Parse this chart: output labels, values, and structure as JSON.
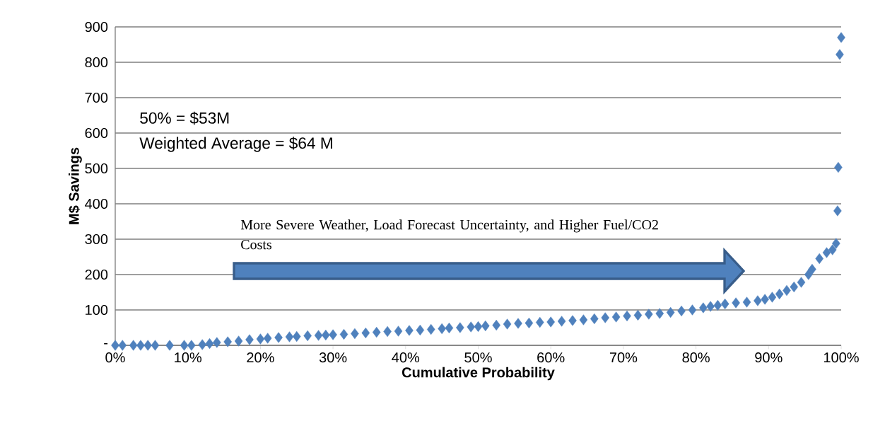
{
  "chart_data": {
    "type": "scatter",
    "xlabel": "Cumulative Probability",
    "ylabel": "M$ Savings",
    "annotations": [
      "50% = $53M",
      "Weighted Average = $64 M",
      "More Severe Weather, Load Forecast Uncertainty, and Higher Fuel/CO2 Costs"
    ],
    "x": [
      0,
      1,
      2.5,
      3.5,
      4.5,
      5.5,
      7.5,
      9.5,
      10.5,
      12,
      13,
      14,
      15.5,
      17,
      18.5,
      20,
      21,
      22.5,
      24,
      25,
      26.5,
      28,
      29,
      30,
      31.5,
      33,
      34.5,
      36,
      37.5,
      39,
      40.5,
      42,
      43.5,
      45,
      46,
      47.5,
      49,
      50,
      51,
      52.5,
      54,
      55.5,
      57,
      58.5,
      60,
      61.5,
      63,
      64.5,
      66,
      67.5,
      69,
      70.5,
      72,
      73.5,
      75,
      76.5,
      78,
      79.5,
      81,
      82,
      83,
      84,
      85.5,
      87,
      88.5,
      89.5,
      90.5,
      91.5,
      92.5,
      93.5,
      94.5,
      95.5,
      96,
      97,
      98,
      98.8,
      99.3,
      99.5,
      99.6,
      99.8,
      100
    ],
    "series": [
      {
        "color": "#4f81bd",
        "values": [
          0,
          0,
          0,
          0,
          0,
          0,
          0,
          0,
          0,
          2,
          5,
          8,
          10,
          12,
          16,
          18,
          20,
          22,
          24,
          25,
          27,
          28,
          29,
          30,
          31,
          33,
          35,
          37,
          39,
          40,
          42,
          43,
          45,
          47,
          49,
          50,
          52,
          53,
          55,
          57,
          60,
          62,
          63,
          65,
          66,
          68,
          70,
          72,
          75,
          78,
          80,
          83,
          85,
          88,
          90,
          93,
          97,
          100,
          106,
          110,
          113,
          117,
          120,
          122,
          126,
          130,
          136,
          145,
          155,
          165,
          178,
          200,
          215,
          245,
          262,
          270,
          288,
          380,
          503,
          822,
          870
        ]
      }
    ],
    "marker": "diamond",
    "grid": "y",
    "xlim": [
      0,
      100
    ],
    "xticks": [
      {
        "value": 0,
        "label": "0%"
      },
      {
        "value": 10,
        "label": "10%"
      },
      {
        "value": 20,
        "label": "20%"
      },
      {
        "value": 30,
        "label": "30%"
      },
      {
        "value": 40,
        "label": "40%"
      },
      {
        "value": 50,
        "label": "50%"
      },
      {
        "value": 60,
        "label": "60%"
      },
      {
        "value": 70,
        "label": "70%"
      },
      {
        "value": 80,
        "label": "80%"
      },
      {
        "value": 90,
        "label": "90%"
      },
      {
        "value": 100,
        "label": "100%"
      }
    ],
    "ylim": [
      0,
      900
    ],
    "yticks": [
      {
        "value": 0,
        "label": "-"
      },
      100,
      200,
      300,
      400,
      500,
      600,
      700,
      800,
      900
    ]
  }
}
